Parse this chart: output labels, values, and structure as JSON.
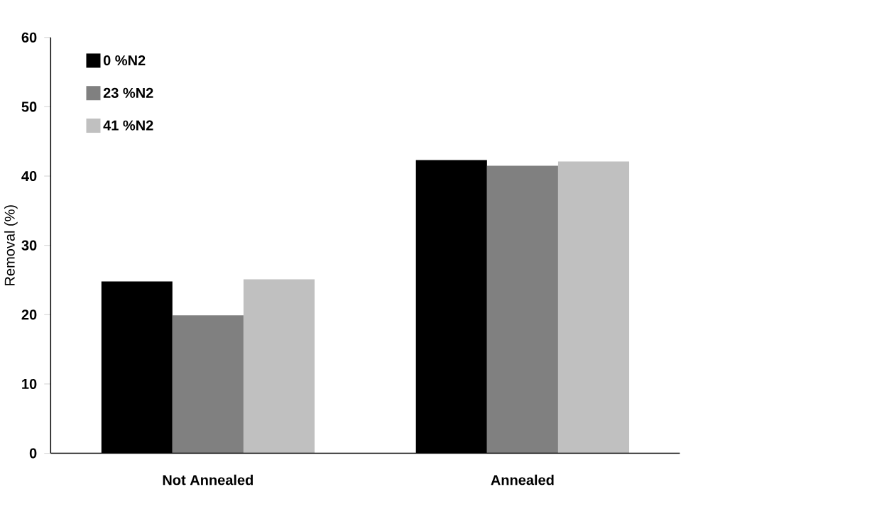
{
  "chart_data": {
    "type": "bar",
    "ylabel": "Removal (%)",
    "categories": [
      "Not Annealed",
      "Annealed"
    ],
    "series": [
      {
        "name": "0 %N2",
        "color": "#000000",
        "values": [
          24.8,
          42.3
        ]
      },
      {
        "name": "23 %N2",
        "color": "#808080",
        "values": [
          19.9,
          41.5
        ]
      },
      {
        "name": "41 %N2",
        "color": "#c0c0c0",
        "values": [
          25.1,
          42.1
        ]
      }
    ],
    "ylim": [
      0,
      60
    ],
    "yticks": [
      0,
      10,
      20,
      30,
      40,
      50,
      60
    ],
    "grid": false,
    "legend": "top left"
  }
}
